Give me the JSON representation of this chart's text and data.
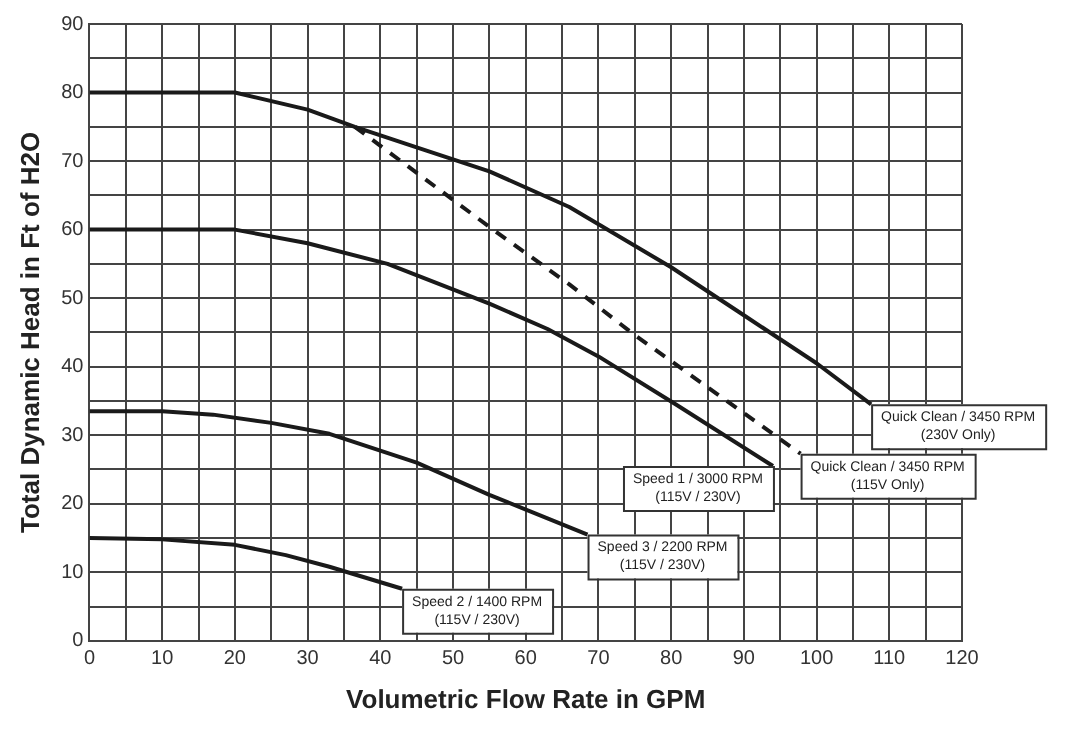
{
  "chart_data": {
    "type": "line",
    "xlabel": "Volumetric Flow Rate in GPM",
    "ylabel": "Total Dynamic Head in Ft of H2O",
    "xlim": [
      0,
      120
    ],
    "ylim": [
      0,
      90
    ],
    "xticks": [
      0,
      {
        "value": 5,
        "label": null
      },
      10,
      {
        "value": 15,
        "label": null
      },
      20,
      {
        "value": 25,
        "label": null
      },
      30,
      {
        "value": 35,
        "label": null
      },
      40,
      {
        "value": 45,
        "label": null
      },
      50,
      {
        "value": 55,
        "label": null
      },
      60,
      {
        "value": 65,
        "label": null
      },
      70,
      {
        "value": 75,
        "label": null
      },
      80,
      {
        "value": 85,
        "label": null
      },
      90,
      {
        "value": 95,
        "label": null
      },
      100,
      {
        "value": 105,
        "label": null
      },
      110,
      {
        "value": 115,
        "label": null
      },
      120
    ],
    "yticks": [
      0,
      {
        "value": 5,
        "label": null
      },
      10,
      {
        "value": 15,
        "label": null
      },
      20,
      {
        "value": 25,
        "label": null
      },
      30,
      {
        "value": 35,
        "label": null
      },
      40,
      {
        "value": 45,
        "label": null
      },
      50,
      {
        "value": 55,
        "label": null
      },
      60,
      {
        "value": 65,
        "label": null
      },
      70,
      {
        "value": 75,
        "label": null
      },
      80,
      {
        "value": 85,
        "label": null
      },
      90
    ],
    "grid": true,
    "legend": false,
    "marker": "none",
    "line_style": "solid",
    "series": [
      {
        "name": "Quick Clean / 3450 RPM\n(230V Only)",
        "color": "#1a1a1a",
        "x": [
          0,
          10,
          20,
          30,
          36.5,
          45,
          55,
          66,
          80,
          90,
          100,
          107.5
        ],
        "values": [
          80,
          80,
          80,
          77.5,
          75,
          72,
          68.5,
          63.3,
          54.5,
          47.5,
          40.5,
          34.5
        ]
      },
      {
        "name": "Quick Clean / 3450 RPM\n(115V Only)",
        "color": "#1a1a1a",
        "line_style": "dashed",
        "x": [
          36.5,
          55.5,
          66,
          75,
          97.8
        ],
        "values": [
          75,
          60,
          52,
          44.6,
          27.3
        ]
      },
      {
        "name": "Speed 1 / 3000 RPM\n(115V / 230V)",
        "color": "#1a1a1a",
        "x": [
          0,
          10,
          20,
          30,
          41,
          55,
          63,
          70,
          80.5,
          94
        ],
        "values": [
          60,
          60,
          60,
          58,
          55,
          49.2,
          45.5,
          41.5,
          34.6,
          25.5
        ]
      },
      {
        "name": "Speed 3 / 2200 RPM\n(115V / 230V)",
        "color": "#1a1a1a",
        "x": [
          0,
          10,
          17,
          25,
          33,
          45,
          55,
          68.5
        ],
        "values": [
          33.5,
          33.5,
          33,
          31.8,
          30.2,
          26,
          21.3,
          15.5
        ]
      },
      {
        "name": "Speed 2 / 1400 RPM\n(115V / 230V)",
        "color": "#1a1a1a",
        "x": [
          0,
          10,
          20,
          27,
          33,
          43
        ],
        "values": [
          15,
          14.8,
          14,
          12.5,
          10.8,
          7.6
        ]
      }
    ]
  }
}
